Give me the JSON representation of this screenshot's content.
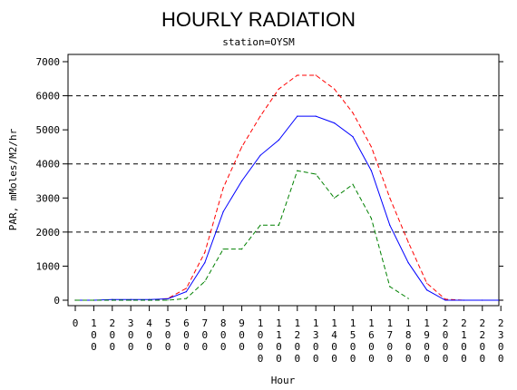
{
  "chart_data": {
    "type": "line",
    "title": "HOURLY RADIATION",
    "subtitle": "station=OYSM",
    "xlabel": "Hour",
    "ylabel": "PAR, mMoles/M2/hr",
    "ylim": [
      0,
      7000
    ],
    "yticks": [
      0,
      1000,
      2000,
      3000,
      4000,
      5000,
      6000,
      7000
    ],
    "ytick_labels": [
      "0",
      "1000",
      "2000",
      "3000",
      "4000",
      "5000",
      "6000",
      "7000"
    ],
    "x": [
      0,
      100,
      200,
      300,
      400,
      500,
      600,
      700,
      800,
      900,
      1000,
      1100,
      1200,
      1300,
      1400,
      1500,
      1600,
      1700,
      1800,
      1900,
      2000,
      2100,
      2200,
      2300
    ],
    "xtick_labels": [
      "0",
      "100",
      "200",
      "300",
      "400",
      "500",
      "600",
      "700",
      "800",
      "900",
      "1000",
      "1100",
      "1200",
      "1300",
      "1400",
      "1500",
      "1600",
      "1700",
      "1800",
      "1900",
      "2000",
      "2100",
      "2200",
      "2300"
    ],
    "reference_lines": [
      2000,
      4000,
      6000
    ],
    "grid": false,
    "series": [
      {
        "style": "dashed",
        "color": "#ff0000",
        "x": [
          0,
          100,
          200,
          300,
          400,
          500,
          600,
          700,
          800,
          900,
          1000,
          1100,
          1200,
          1300,
          1400,
          1500,
          1600,
          1700,
          1800,
          1900,
          2000,
          2100,
          2200,
          2300
        ],
        "values": [
          0,
          0,
          0,
          0,
          0,
          50,
          350,
          1400,
          3300,
          4500,
          5400,
          6200,
          6600,
          6600,
          6200,
          5500,
          4500,
          3000,
          1700,
          500,
          30,
          0,
          0,
          0
        ]
      },
      {
        "style": "solid",
        "color": "#0000ff",
        "x": [
          0,
          100,
          200,
          300,
          400,
          500,
          600,
          700,
          800,
          900,
          1000,
          1100,
          1200,
          1300,
          1400,
          1500,
          1600,
          1700,
          1800,
          1900,
          2000,
          2100,
          2200,
          2300
        ],
        "values": [
          0,
          0,
          20,
          20,
          20,
          40,
          250,
          1100,
          2600,
          3500,
          4250,
          4700,
          5400,
          5400,
          5200,
          4800,
          3800,
          2200,
          1100,
          300,
          0,
          0,
          0,
          0
        ]
      },
      {
        "style": "dashed",
        "color": "#008000",
        "x": [
          0,
          100,
          200,
          300,
          400,
          500,
          600,
          700,
          800,
          900,
          1000,
          1100,
          1200,
          1300,
          1400,
          1500,
          1600,
          1700,
          1800
        ],
        "values": [
          0,
          0,
          0,
          0,
          0,
          0,
          50,
          550,
          1500,
          1500,
          2200,
          2200,
          3800,
          3700,
          3000,
          3400,
          2400,
          400,
          50
        ]
      }
    ]
  }
}
